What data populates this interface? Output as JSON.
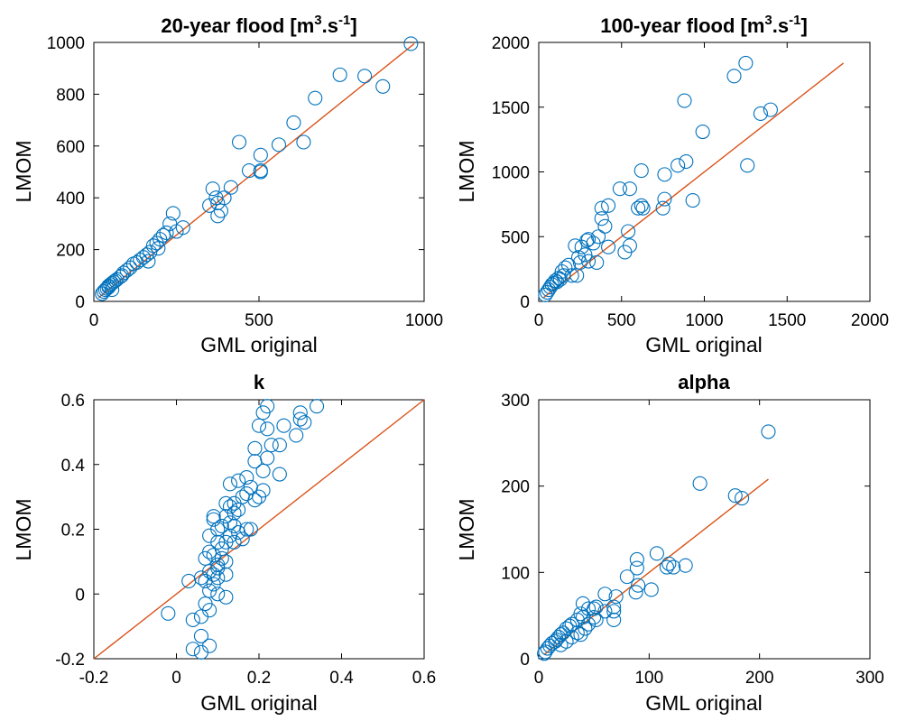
{
  "chart_data": [
    {
      "type": "scatter",
      "title": "20-year flood [m",
      "title_sup": "3",
      "title_mid": ".s",
      "title_sup2": "-1",
      "title_end": "]",
      "xlabel": "GML original",
      "ylabel": "LMOM",
      "xlim": [
        0,
        1000
      ],
      "ylim": [
        0,
        1000
      ],
      "xticks": [
        0,
        500,
        1000
      ],
      "yticks": [
        0,
        200,
        400,
        600,
        800,
        1000
      ],
      "marker_color": "#0072BD",
      "line_color": "#D95319",
      "reference_line": [
        [
          15,
          15
        ],
        [
          970,
          995
        ]
      ],
      "points": [
        [
          960,
          995
        ],
        [
          745,
          875
        ],
        [
          820,
          870
        ],
        [
          875,
          830
        ],
        [
          670,
          785
        ],
        [
          605,
          690
        ],
        [
          440,
          615
        ],
        [
          560,
          605
        ],
        [
          635,
          615
        ],
        [
          505,
          565
        ],
        [
          470,
          505
        ],
        [
          505,
          505
        ],
        [
          505,
          500
        ],
        [
          415,
          440
        ],
        [
          360,
          435
        ],
        [
          350,
          370
        ],
        [
          395,
          400
        ],
        [
          370,
          400
        ],
        [
          385,
          350
        ],
        [
          375,
          330
        ],
        [
          375,
          380
        ],
        [
          240,
          340
        ],
        [
          230,
          300
        ],
        [
          210,
          255
        ],
        [
          220,
          265
        ],
        [
          270,
          285
        ],
        [
          250,
          270
        ],
        [
          200,
          240
        ],
        [
          190,
          225
        ],
        [
          180,
          215
        ],
        [
          195,
          205
        ],
        [
          170,
          190
        ],
        [
          160,
          180
        ],
        [
          150,
          170
        ],
        [
          165,
          155
        ],
        [
          140,
          160
        ],
        [
          130,
          150
        ],
        [
          120,
          145
        ],
        [
          110,
          130
        ],
        [
          100,
          120
        ],
        [
          90,
          110
        ],
        [
          85,
          100
        ],
        [
          80,
          95
        ],
        [
          70,
          85
        ],
        [
          65,
          80
        ],
        [
          60,
          75
        ],
        [
          55,
          70
        ],
        [
          50,
          65
        ],
        [
          45,
          55
        ],
        [
          40,
          50
        ],
        [
          35,
          45
        ],
        [
          30,
          38
        ],
        [
          25,
          30
        ],
        [
          55,
          45
        ],
        [
          45,
          60
        ]
      ]
    },
    {
      "type": "scatter",
      "title": "100-year flood [m",
      "title_sup": "3",
      "title_mid": ".s",
      "title_sup2": "-1",
      "title_end": "]",
      "xlabel": "GML original",
      "ylabel": "LMOM",
      "xlim": [
        0,
        2000
      ],
      "ylim": [
        0,
        2000
      ],
      "xticks": [
        0,
        500,
        1000,
        1500,
        2000
      ],
      "yticks": [
        0,
        500,
        1000,
        1500,
        2000
      ],
      "marker_color": "#0072BD",
      "line_color": "#D95319",
      "reference_line": [
        [
          30,
          30
        ],
        [
          1840,
          1840
        ]
      ],
      "points": [
        [
          1250,
          1840
        ],
        [
          1180,
          1740
        ],
        [
          880,
          1550
        ],
        [
          1340,
          1450
        ],
        [
          1400,
          1480
        ],
        [
          990,
          1310
        ],
        [
          1260,
          1050
        ],
        [
          890,
          1080
        ],
        [
          840,
          1050
        ],
        [
          760,
          980
        ],
        [
          620,
          1010
        ],
        [
          760,
          790
        ],
        [
          930,
          780
        ],
        [
          750,
          720
        ],
        [
          620,
          740
        ],
        [
          630,
          720
        ],
        [
          550,
          870
        ],
        [
          490,
          870
        ],
        [
          420,
          740
        ],
        [
          380,
          720
        ],
        [
          380,
          640
        ],
        [
          400,
          580
        ],
        [
          360,
          500
        ],
        [
          550,
          430
        ],
        [
          520,
          380
        ],
        [
          540,
          540
        ],
        [
          330,
          450
        ],
        [
          290,
          470
        ],
        [
          300,
          480
        ],
        [
          260,
          420
        ],
        [
          220,
          430
        ],
        [
          240,
          340
        ],
        [
          180,
          280
        ],
        [
          160,
          260
        ],
        [
          140,
          230
        ],
        [
          120,
          180
        ],
        [
          100,
          160
        ],
        [
          80,
          130
        ],
        [
          60,
          90
        ],
        [
          50,
          70
        ],
        [
          40,
          50
        ],
        [
          70,
          110
        ],
        [
          90,
          140
        ],
        [
          110,
          150
        ],
        [
          200,
          200
        ],
        [
          250,
          300
        ],
        [
          230,
          200
        ],
        [
          150,
          200
        ],
        [
          130,
          170
        ],
        [
          300,
          310
        ],
        [
          350,
          300
        ],
        [
          420,
          420
        ],
        [
          600,
          720
        ],
        [
          280,
          360
        ]
      ]
    },
    {
      "type": "scatter",
      "title": "k",
      "xlabel": "GML original",
      "ylabel": "LMOM",
      "xlim": [
        -0.2,
        0.6
      ],
      "ylim": [
        -0.2,
        0.6
      ],
      "xticks": [
        -0.2,
        0,
        0.2,
        0.4,
        0.6
      ],
      "yticks": [
        -0.2,
        0,
        0.2,
        0.4,
        0.6
      ],
      "marker_color": "#0072BD",
      "line_color": "#D95319",
      "reference_line": [
        [
          -0.2,
          -0.2
        ],
        [
          0.6,
          0.6
        ]
      ],
      "points": [
        [
          0.34,
          0.58
        ],
        [
          0.22,
          0.58
        ],
        [
          0.3,
          0.56
        ],
        [
          0.3,
          0.54
        ],
        [
          0.21,
          0.56
        ],
        [
          0.2,
          0.52
        ],
        [
          0.22,
          0.51
        ],
        [
          0.26,
          0.52
        ],
        [
          0.31,
          0.53
        ],
        [
          0.25,
          0.46
        ],
        [
          0.29,
          0.49
        ],
        [
          0.19,
          0.45
        ],
        [
          0.23,
          0.46
        ],
        [
          0.22,
          0.42
        ],
        [
          0.19,
          0.41
        ],
        [
          0.21,
          0.38
        ],
        [
          0.25,
          0.37
        ],
        [
          0.17,
          0.36
        ],
        [
          0.15,
          0.35
        ],
        [
          0.13,
          0.34
        ],
        [
          0.18,
          0.33
        ],
        [
          0.21,
          0.32
        ],
        [
          0.2,
          0.3
        ],
        [
          0.19,
          0.29
        ],
        [
          0.17,
          0.31
        ],
        [
          0.16,
          0.3
        ],
        [
          0.14,
          0.28
        ],
        [
          0.12,
          0.28
        ],
        [
          0.13,
          0.27
        ],
        [
          0.15,
          0.26
        ],
        [
          0.14,
          0.25
        ],
        [
          0.12,
          0.24
        ],
        [
          0.09,
          0.24
        ],
        [
          0.09,
          0.23
        ],
        [
          0.13,
          0.22
        ],
        [
          0.11,
          0.21
        ],
        [
          0.14,
          0.21
        ],
        [
          0.1,
          0.2
        ],
        [
          0.17,
          0.2
        ],
        [
          0.18,
          0.2
        ],
        [
          0.15,
          0.19
        ],
        [
          0.13,
          0.18
        ],
        [
          0.08,
          0.18
        ],
        [
          0.16,
          0.17
        ],
        [
          0.14,
          0.16
        ],
        [
          0.12,
          0.16
        ],
        [
          0.1,
          0.16
        ],
        [
          0.11,
          0.14
        ],
        [
          0.08,
          0.13
        ],
        [
          0.09,
          0.12
        ],
        [
          0.11,
          0.11
        ],
        [
          0.07,
          0.11
        ],
        [
          0.12,
          0.1
        ],
        [
          0.1,
          0.08
        ],
        [
          0.08,
          0.07
        ],
        [
          0.09,
          0.06
        ],
        [
          0.1,
          0.05
        ],
        [
          0.12,
          0.06
        ],
        [
          0.06,
          0.05
        ],
        [
          0.03,
          0.04
        ],
        [
          0.07,
          0.04
        ],
        [
          0.09,
          0.03
        ],
        [
          0.08,
          0.01
        ],
        [
          0.1,
          0.0
        ],
        [
          0.12,
          -0.01
        ],
        [
          0.07,
          -0.03
        ],
        [
          0.08,
          -0.05
        ],
        [
          0.06,
          -0.07
        ],
        [
          0.04,
          -0.08
        ],
        [
          -0.02,
          -0.06
        ],
        [
          0.06,
          -0.13
        ],
        [
          0.04,
          -0.17
        ],
        [
          0.06,
          -0.18
        ],
        [
          0.08,
          -0.16
        ],
        [
          0.1,
          0.09
        ]
      ]
    },
    {
      "type": "scatter",
      "title": "alpha",
      "xlabel": "GML original",
      "ylabel": "LMOM",
      "xlim": [
        0,
        300
      ],
      "ylim": [
        0,
        300
      ],
      "xticks": [
        0,
        100,
        200,
        300
      ],
      "yticks": [
        0,
        100,
        200,
        300
      ],
      "marker_color": "#0072BD",
      "line_color": "#D95319",
      "reference_line": [
        [
          5,
          5
        ],
        [
          208,
          208
        ]
      ],
      "points": [
        [
          208,
          263
        ],
        [
          146,
          203
        ],
        [
          178,
          189
        ],
        [
          184,
          186
        ],
        [
          107,
          122
        ],
        [
          89,
          115
        ],
        [
          133,
          108
        ],
        [
          118,
          110
        ],
        [
          116,
          106
        ],
        [
          122,
          106
        ],
        [
          89,
          105
        ],
        [
          80,
          95
        ],
        [
          90,
          85
        ],
        [
          102,
          80
        ],
        [
          88,
          77
        ],
        [
          70,
          72
        ],
        [
          60,
          75
        ],
        [
          68,
          60
        ],
        [
          68,
          55
        ],
        [
          60,
          55
        ],
        [
          50,
          58
        ],
        [
          52,
          60
        ],
        [
          40,
          64
        ],
        [
          45,
          58
        ],
        [
          38,
          52
        ],
        [
          40,
          48
        ],
        [
          35,
          45
        ],
        [
          30,
          40
        ],
        [
          28,
          38
        ],
        [
          25,
          35
        ],
        [
          22,
          30
        ],
        [
          20,
          28
        ],
        [
          18,
          25
        ],
        [
          16,
          22
        ],
        [
          15,
          20
        ],
        [
          12,
          18
        ],
        [
          10,
          15
        ],
        [
          8,
          12
        ],
        [
          6,
          8
        ],
        [
          5,
          6
        ],
        [
          35,
          30
        ],
        [
          42,
          35
        ],
        [
          50,
          48
        ],
        [
          45,
          40
        ],
        [
          30,
          25
        ],
        [
          25,
          20
        ],
        [
          20,
          16
        ],
        [
          68,
          45
        ],
        [
          52,
          45
        ],
        [
          38,
          28
        ]
      ]
    }
  ]
}
